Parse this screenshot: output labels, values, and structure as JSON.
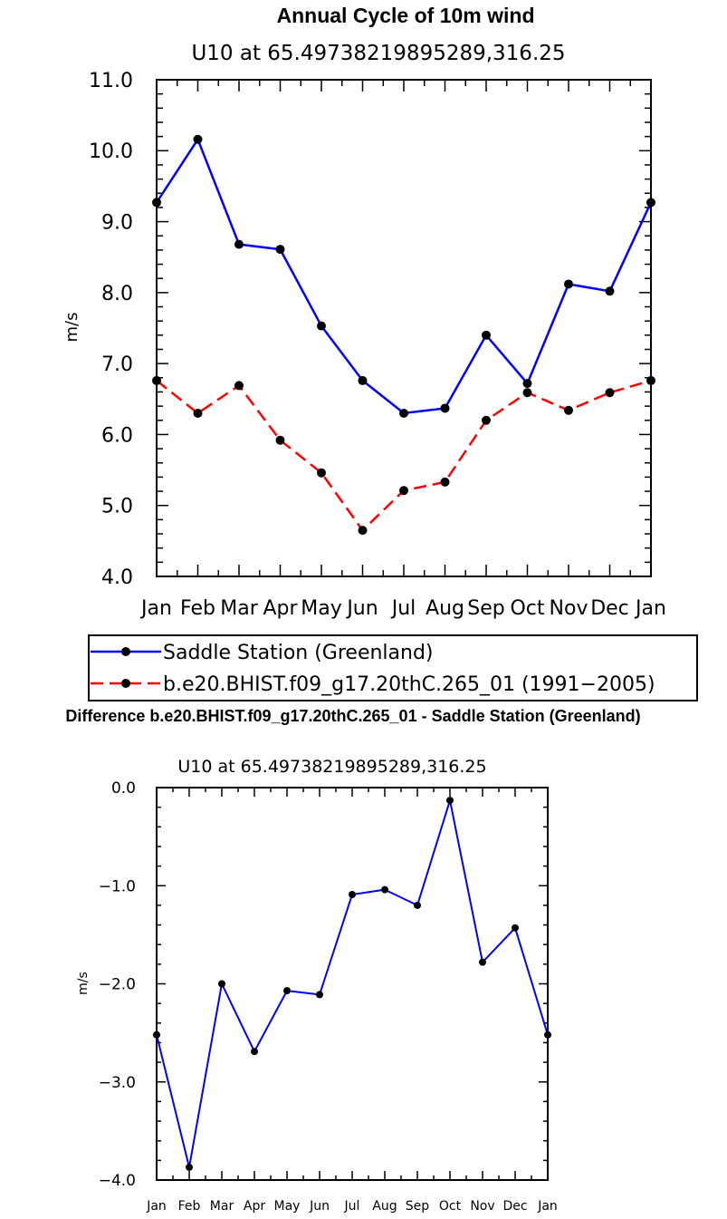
{
  "chart_data": [
    {
      "type": "line",
      "title": "Annual Cycle of 10m wind",
      "subtitle": "U10 at 65.49738219895289,316.25",
      "xlabel": "",
      "ylabel": "m/s",
      "categories": [
        "Jan",
        "Feb",
        "Mar",
        "Apr",
        "May",
        "Jun",
        "Jul",
        "Aug",
        "Sep",
        "Oct",
        "Nov",
        "Dec",
        "Jan"
      ],
      "ylim": [
        4.0,
        11.0
      ],
      "yticks": [
        "4.0",
        "5.0",
        "6.0",
        "7.0",
        "8.0",
        "9.0",
        "10.0",
        "11.0"
      ],
      "grid": false,
      "legend": "bottom",
      "series": [
        {
          "name": "Saddle Station (Greenland)",
          "color": "#0000ff",
          "dash": "solid",
          "values": [
            9.27,
            10.16,
            8.68,
            8.61,
            7.53,
            6.76,
            6.3,
            6.37,
            7.4,
            6.72,
            8.12,
            8.02,
            9.27
          ]
        },
        {
          "name": "b.e20.BHIST.f09_g17.20thC.265_01 (1991−2005)",
          "color": "#ff0000",
          "dash": "dashed",
          "values": [
            6.76,
            6.3,
            6.69,
            5.92,
            5.46,
            4.65,
            5.21,
            5.33,
            6.2,
            6.59,
            6.34,
            6.59,
            6.76
          ]
        }
      ]
    },
    {
      "type": "line",
      "title": "Difference b.e20.BHIST.f09_g17.20thC.265_01 - Saddle Station (Greenland)",
      "subtitle": "U10 at 65.49738219895289,316.25",
      "xlabel": "",
      "ylabel": "m/s",
      "categories": [
        "Jan",
        "Feb",
        "Mar",
        "Apr",
        "May",
        "Jun",
        "Jul",
        "Aug",
        "Sep",
        "Oct",
        "Nov",
        "Dec",
        "Jan"
      ],
      "ylim": [
        -4.0,
        0.0
      ],
      "yticks": [
        "−4.0",
        "−3.0",
        "−2.0",
        "−1.0",
        "0.0"
      ],
      "grid": false,
      "series": [
        {
          "color": "#0000ff",
          "values": [
            -2.52,
            -3.87,
            -2.0,
            -2.69,
            -2.07,
            -2.11,
            -1.09,
            -1.04,
            -1.2,
            -0.13,
            -1.78,
            -1.43,
            -2.52
          ]
        }
      ]
    }
  ]
}
